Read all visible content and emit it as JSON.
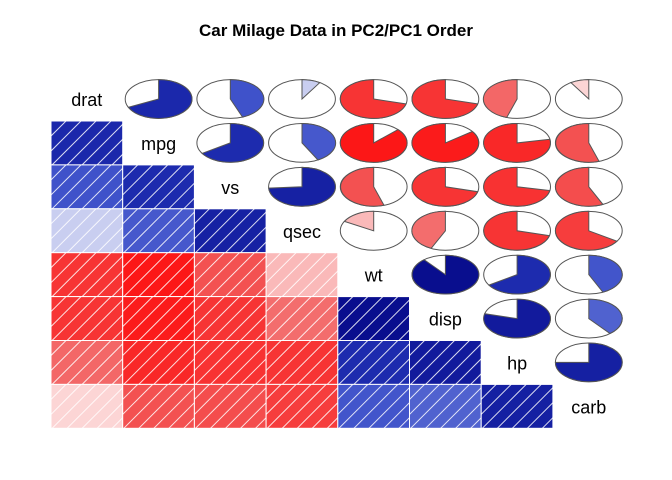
{
  "chart_data": {
    "type": "heatmap",
    "title": "Car Milage Data in PC2/PC1 Order",
    "variables": [
      "drat",
      "mpg",
      "vs",
      "qsec",
      "wt",
      "disp",
      "hp",
      "carb"
    ],
    "lower_panel": "shade",
    "upper_panel": "pie",
    "correlations": [
      [
        1.0,
        0.68,
        0.44,
        0.09,
        -0.71,
        -0.71,
        -0.45,
        -0.09
      ],
      [
        0.68,
        1.0,
        0.66,
        0.42,
        -0.87,
        -0.85,
        -0.78,
        -0.55
      ],
      [
        0.44,
        0.66,
        1.0,
        0.74,
        -0.55,
        -0.71,
        -0.72,
        -0.57
      ],
      [
        0.09,
        0.42,
        0.74,
        1.0,
        -0.17,
        -0.43,
        -0.71,
        -0.66
      ],
      [
        -0.71,
        -0.87,
        -0.55,
        -0.17,
        1.0,
        0.89,
        0.66,
        0.43
      ],
      [
        -0.71,
        -0.85,
        -0.71,
        -0.43,
        0.89,
        1.0,
        0.79,
        0.39
      ],
      [
        -0.45,
        -0.78,
        -0.72,
        -0.71,
        0.66,
        0.79,
        1.0,
        0.75
      ],
      [
        -0.09,
        -0.55,
        -0.57,
        -0.66,
        0.43,
        0.39,
        0.75,
        1.0
      ]
    ],
    "colors": {
      "positive_strong": "#00007F",
      "positive_mid": "#2A3FC4",
      "zero": "#FFFFFF",
      "negative_mid": "#F25A5A",
      "negative_strong": "#FF0000",
      "pie_outline": "#555555",
      "stripe": "#FFFFFF"
    }
  }
}
